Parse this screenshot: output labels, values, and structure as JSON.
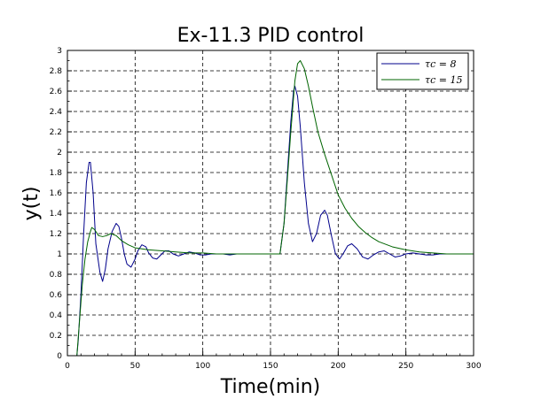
{
  "chart_data": {
    "type": "line",
    "title": "Ex-11.3 PID control",
    "xlabel": "Time(min)",
    "ylabel": "y(t)",
    "xlim": [
      0,
      300
    ],
    "ylim": [
      0,
      3
    ],
    "x_ticks": [
      "0",
      "50",
      "100",
      "150",
      "200",
      "250",
      "300"
    ],
    "y_ticks": [
      "0",
      "0.2",
      "0.4",
      "0.6",
      "0.8",
      "1",
      "1.2",
      "1.4",
      "1.6",
      "1.8",
      "2",
      "2.2",
      "2.4",
      "2.6",
      "2.8",
      "3"
    ],
    "grid": true,
    "legend_position": "top-right",
    "legend": [
      {
        "label": "τc = 8",
        "color": "#00008b"
      },
      {
        "label": "τc = 15",
        "color": "#006400"
      }
    ],
    "series": [
      {
        "name": "τc = 8",
        "color": "#00008b",
        "x": [
          7,
          8,
          10,
          12,
          14,
          16,
          17,
          19,
          21,
          24,
          26,
          28,
          30,
          33,
          36,
          38,
          40,
          42,
          44,
          47,
          50,
          52,
          55,
          58,
          60,
          63,
          66,
          69,
          72,
          75,
          78,
          82,
          86,
          90,
          94,
          98,
          102,
          106,
          110,
          115,
          120,
          125,
          130,
          140,
          150,
          157,
          160,
          162,
          165,
          167,
          168,
          170,
          172,
          175,
          178,
          181,
          184,
          187,
          190,
          192,
          195,
          198,
          201,
          204,
          207,
          210,
          214,
          218,
          222,
          226,
          230,
          234,
          238,
          242,
          246,
          250,
          255,
          260,
          265,
          270,
          275,
          280,
          285,
          290,
          295,
          300
        ],
        "y": [
          0,
          0.15,
          0.6,
          1.2,
          1.7,
          1.9,
          1.9,
          1.6,
          1.1,
          0.82,
          0.73,
          0.85,
          1.05,
          1.22,
          1.3,
          1.27,
          1.15,
          1.0,
          0.9,
          0.87,
          0.95,
          1.03,
          1.09,
          1.07,
          1.01,
          0.96,
          0.95,
          0.99,
          1.03,
          1.03,
          1.0,
          0.98,
          1.0,
          1.02,
          1.01,
          0.99,
          0.99,
          1.0,
          1.0,
          1.0,
          0.99,
          1.0,
          1.0,
          1.0,
          1.0,
          1.0,
          1.3,
          1.7,
          2.3,
          2.6,
          2.65,
          2.55,
          2.25,
          1.7,
          1.3,
          1.12,
          1.2,
          1.38,
          1.43,
          1.38,
          1.18,
          1.0,
          0.95,
          1.01,
          1.08,
          1.1,
          1.05,
          0.97,
          0.95,
          0.99,
          1.02,
          1.03,
          1.0,
          0.97,
          0.98,
          1.0,
          1.01,
          1.0,
          0.99,
          0.99,
          1.0,
          1.0,
          1.0,
          1.0,
          1.0,
          1.0
        ]
      },
      {
        "name": "τc = 15",
        "color": "#006400",
        "x": [
          7,
          9,
          11,
          13,
          15,
          17,
          18,
          20,
          23,
          26,
          29,
          32,
          36,
          40,
          45,
          50,
          55,
          60,
          70,
          80,
          90,
          100,
          110,
          120,
          130,
          140,
          150,
          157,
          160,
          162,
          165,
          168,
          170,
          172,
          175,
          178,
          181,
          185,
          190,
          195,
          200,
          205,
          210,
          215,
          220,
          225,
          230,
          240,
          250,
          260,
          270,
          280,
          290,
          300
        ],
        "y": [
          0,
          0.35,
          0.7,
          0.95,
          1.12,
          1.22,
          1.26,
          1.24,
          1.18,
          1.17,
          1.18,
          1.2,
          1.18,
          1.13,
          1.09,
          1.06,
          1.05,
          1.04,
          1.03,
          1.02,
          1.01,
          1.01,
          1.0,
          1.0,
          1.0,
          1.0,
          1.0,
          1.0,
          1.3,
          1.65,
          2.2,
          2.7,
          2.87,
          2.9,
          2.82,
          2.65,
          2.45,
          2.2,
          1.98,
          1.78,
          1.58,
          1.45,
          1.35,
          1.27,
          1.21,
          1.16,
          1.12,
          1.07,
          1.04,
          1.02,
          1.01,
          1.0,
          1.0,
          1.0
        ]
      }
    ]
  }
}
